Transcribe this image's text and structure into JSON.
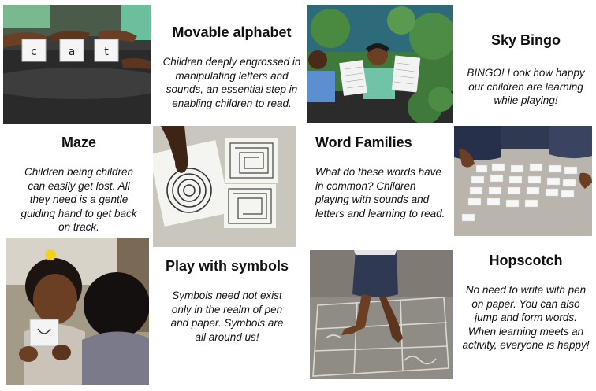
{
  "tiles": {
    "movable_alphabet": {
      "title": "Movable alphabet",
      "caption": "Children deeply engrossed in manipulating letters and sounds, an essential step in enabling children to read.",
      "photo_letters": [
        "c",
        "a",
        "t"
      ]
    },
    "sky_bingo": {
      "title": "Sky Bingo",
      "caption": "BINGO! Look how happy our children are learning while playing!"
    },
    "maze": {
      "title": "Maze",
      "caption": "Children being children can easily get lost. All they need is a gentle guiding hand to get back on track."
    },
    "word_families": {
      "title": "Word Families",
      "caption": "What do these words have in common? Children playing with sounds and letters and learning to read."
    },
    "play_with_symbols": {
      "title": "Play with symbols",
      "caption": "Symbols need not exist only in the realm of pen and paper. Symbols are all around us!"
    },
    "hopscotch": {
      "title": "Hopscotch",
      "caption": "No need to write with pen on paper. You can also jump and form words. When learning meets an activity, everyone is happy!"
    }
  },
  "colors": {
    "skin": "#6b3f24",
    "green_uniform": "#6fc3a6",
    "blue_shirt": "#5b8fd0",
    "table_dark": "#2b2b2b",
    "leaves": "#3f7a3a",
    "floor_grey": "#8f8c86",
    "navy_skirt": "#2f3a52"
  }
}
